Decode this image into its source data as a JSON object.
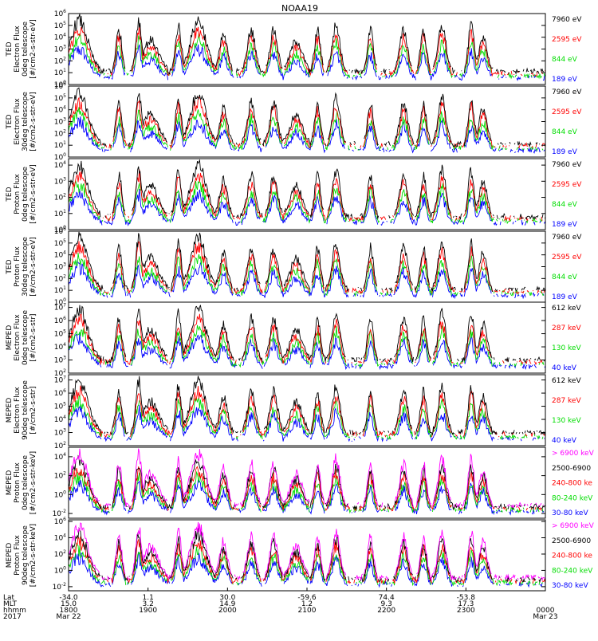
{
  "title": "NOAA19",
  "chart_data": [
    {
      "type": "line",
      "ylabel": [
        "TED",
        "Electron Flux",
        "0deg telescope",
        "[#/cm2-s-str-eV]"
      ],
      "yticks": [
        "10^0",
        "10^1",
        "10^2",
        "10^3",
        "10^4",
        "10^5",
        "10^6"
      ],
      "ylim": [
        0,
        6
      ],
      "log_y": true,
      "legend": [
        {
          "name": "7960 eV",
          "color": "#000000"
        },
        {
          "name": "2595 eV",
          "color": "#ff0000"
        },
        {
          "name": "844 eV",
          "color": "#00dd00"
        },
        {
          "name": "189 eV",
          "color": "#0000ff"
        }
      ]
    },
    {
      "type": "line",
      "ylabel": [
        "TED",
        "Electron Flux",
        "30deg telescope",
        "[#/cm2-s-str-eV]"
      ],
      "yticks": [
        "10^0",
        "10^1",
        "10^2",
        "10^3",
        "10^4",
        "10^5",
        "10^6"
      ],
      "ylim": [
        0,
        6
      ],
      "log_y": true,
      "legend": [
        {
          "name": "7960 eV",
          "color": "#000000"
        },
        {
          "name": "2595 eV",
          "color": "#ff0000"
        },
        {
          "name": "844 eV",
          "color": "#00dd00"
        },
        {
          "name": "189 eV",
          "color": "#0000ff"
        }
      ]
    },
    {
      "type": "line",
      "ylabel": [
        "TED",
        "Proton Flux",
        "0deg telescope",
        "[#/cm2-s-str-eV]"
      ],
      "yticks": [
        "10^0",
        "10^1",
        "10^2",
        "10^3",
        "10^4"
      ],
      "ylim": [
        0,
        4.4
      ],
      "log_y": true,
      "legend": [
        {
          "name": "7960 eV",
          "color": "#000000"
        },
        {
          "name": "2595 eV",
          "color": "#ff0000"
        },
        {
          "name": "844 eV",
          "color": "#00dd00"
        },
        {
          "name": "189 eV",
          "color": "#0000ff"
        }
      ]
    },
    {
      "type": "line",
      "ylabel": [
        "TED",
        "Proton Flux",
        "30deg telescope",
        "[#/cm2-s-str-eV]"
      ],
      "yticks": [
        "10^0",
        "10^1",
        "10^2",
        "10^3",
        "10^4",
        "10^5",
        "10^6"
      ],
      "ylim": [
        0,
        6
      ],
      "log_y": true,
      "legend": [
        {
          "name": "7960 eV",
          "color": "#000000"
        },
        {
          "name": "2595 eV",
          "color": "#ff0000"
        },
        {
          "name": "844 eV",
          "color": "#00dd00"
        },
        {
          "name": "189 eV",
          "color": "#0000ff"
        }
      ]
    },
    {
      "type": "line",
      "ylabel": [
        "MEPED",
        "Electron Flux",
        "0deg telescope",
        "[#/cm2-s-str]"
      ],
      "yticks": [
        "10^2",
        "10^3",
        "10^4",
        "10^5",
        "10^6",
        "10^7"
      ],
      "ylim": [
        2,
        7.4
      ],
      "log_y": true,
      "legend": [
        {
          "name": "612 keV",
          "color": "#000000"
        },
        {
          "name": "287 keV",
          "color": "#ff0000"
        },
        {
          "name": "130 keV",
          "color": "#00dd00"
        },
        {
          "name": "40 keV",
          "color": "#0000ff"
        }
      ]
    },
    {
      "type": "line",
      "ylabel": [
        "MEPED",
        "Electron Flux",
        "90deg telescope",
        "[#/cm2-s-str]"
      ],
      "yticks": [
        "10^2",
        "10^3",
        "10^4",
        "10^5",
        "10^6",
        "10^7"
      ],
      "ylim": [
        2,
        7.4
      ],
      "log_y": true,
      "legend": [
        {
          "name": "612 keV",
          "color": "#000000"
        },
        {
          "name": "287 keV",
          "color": "#ff0000"
        },
        {
          "name": "130 keV",
          "color": "#00dd00"
        },
        {
          "name": "40 keV",
          "color": "#0000ff"
        }
      ]
    },
    {
      "type": "line",
      "ylabel": [
        "MEPED",
        "Proton Flux",
        "0deg telescope",
        "[#/cm2-s-str-keV]"
      ],
      "yticks": [
        "10^-2",
        "10^0",
        "10^2",
        "10^4"
      ],
      "ylim": [
        -2.5,
        5
      ],
      "log_y": true,
      "legend": [
        {
          "name": "> 6900 keV",
          "color": "#ff00ff"
        },
        {
          "name": "2500-6900",
          "color": "#000000"
        },
        {
          "name": "240-800 ke",
          "color": "#ff0000"
        },
        {
          "name": "80-240 keV",
          "color": "#00dd00"
        },
        {
          "name": "30-80 keV",
          "color": "#0000ff"
        }
      ]
    },
    {
      "type": "line",
      "ylabel": [
        "MEPED",
        "Proton Flux",
        "90deg telescope",
        "[#/cm2-s-str-keV]"
      ],
      "yticks": [
        "10^-2",
        "10^0",
        "10^2",
        "10^4",
        "10^6"
      ],
      "ylim": [
        -2.5,
        6.2
      ],
      "log_y": true,
      "legend": [
        {
          "name": "> 6900 keV",
          "color": "#ff00ff"
        },
        {
          "name": "2500-6900",
          "color": "#000000"
        },
        {
          "name": "240-800 ke",
          "color": "#ff0000"
        },
        {
          "name": "80-240 keV",
          "color": "#00dd00"
        },
        {
          "name": "30-80 keV",
          "color": "#0000ff"
        }
      ]
    }
  ],
  "xaxis": {
    "row_labels": [
      "Lat",
      "MLT",
      "hhmm",
      "2017"
    ],
    "ticks": [
      {
        "lat": "-34.0",
        "mlt": "15.0",
        "hhmm": "1800",
        "date": "Mar 22"
      },
      {
        "lat": "1.1",
        "mlt": "3.2",
        "hhmm": "1900",
        "date": ""
      },
      {
        "lat": "30.0",
        "mlt": "14.9",
        "hhmm": "2000",
        "date": ""
      },
      {
        "lat": "-59.6",
        "mlt": "1.2",
        "hhmm": "2100",
        "date": ""
      },
      {
        "lat": "74.4",
        "mlt": "9.3",
        "hhmm": "2200",
        "date": ""
      },
      {
        "lat": "-53.8",
        "mlt": "17.3",
        "hhmm": "2300",
        "date": ""
      },
      {
        "lat": "",
        "mlt": "",
        "hhmm": "0000",
        "date": "Mar 23"
      }
    ]
  }
}
